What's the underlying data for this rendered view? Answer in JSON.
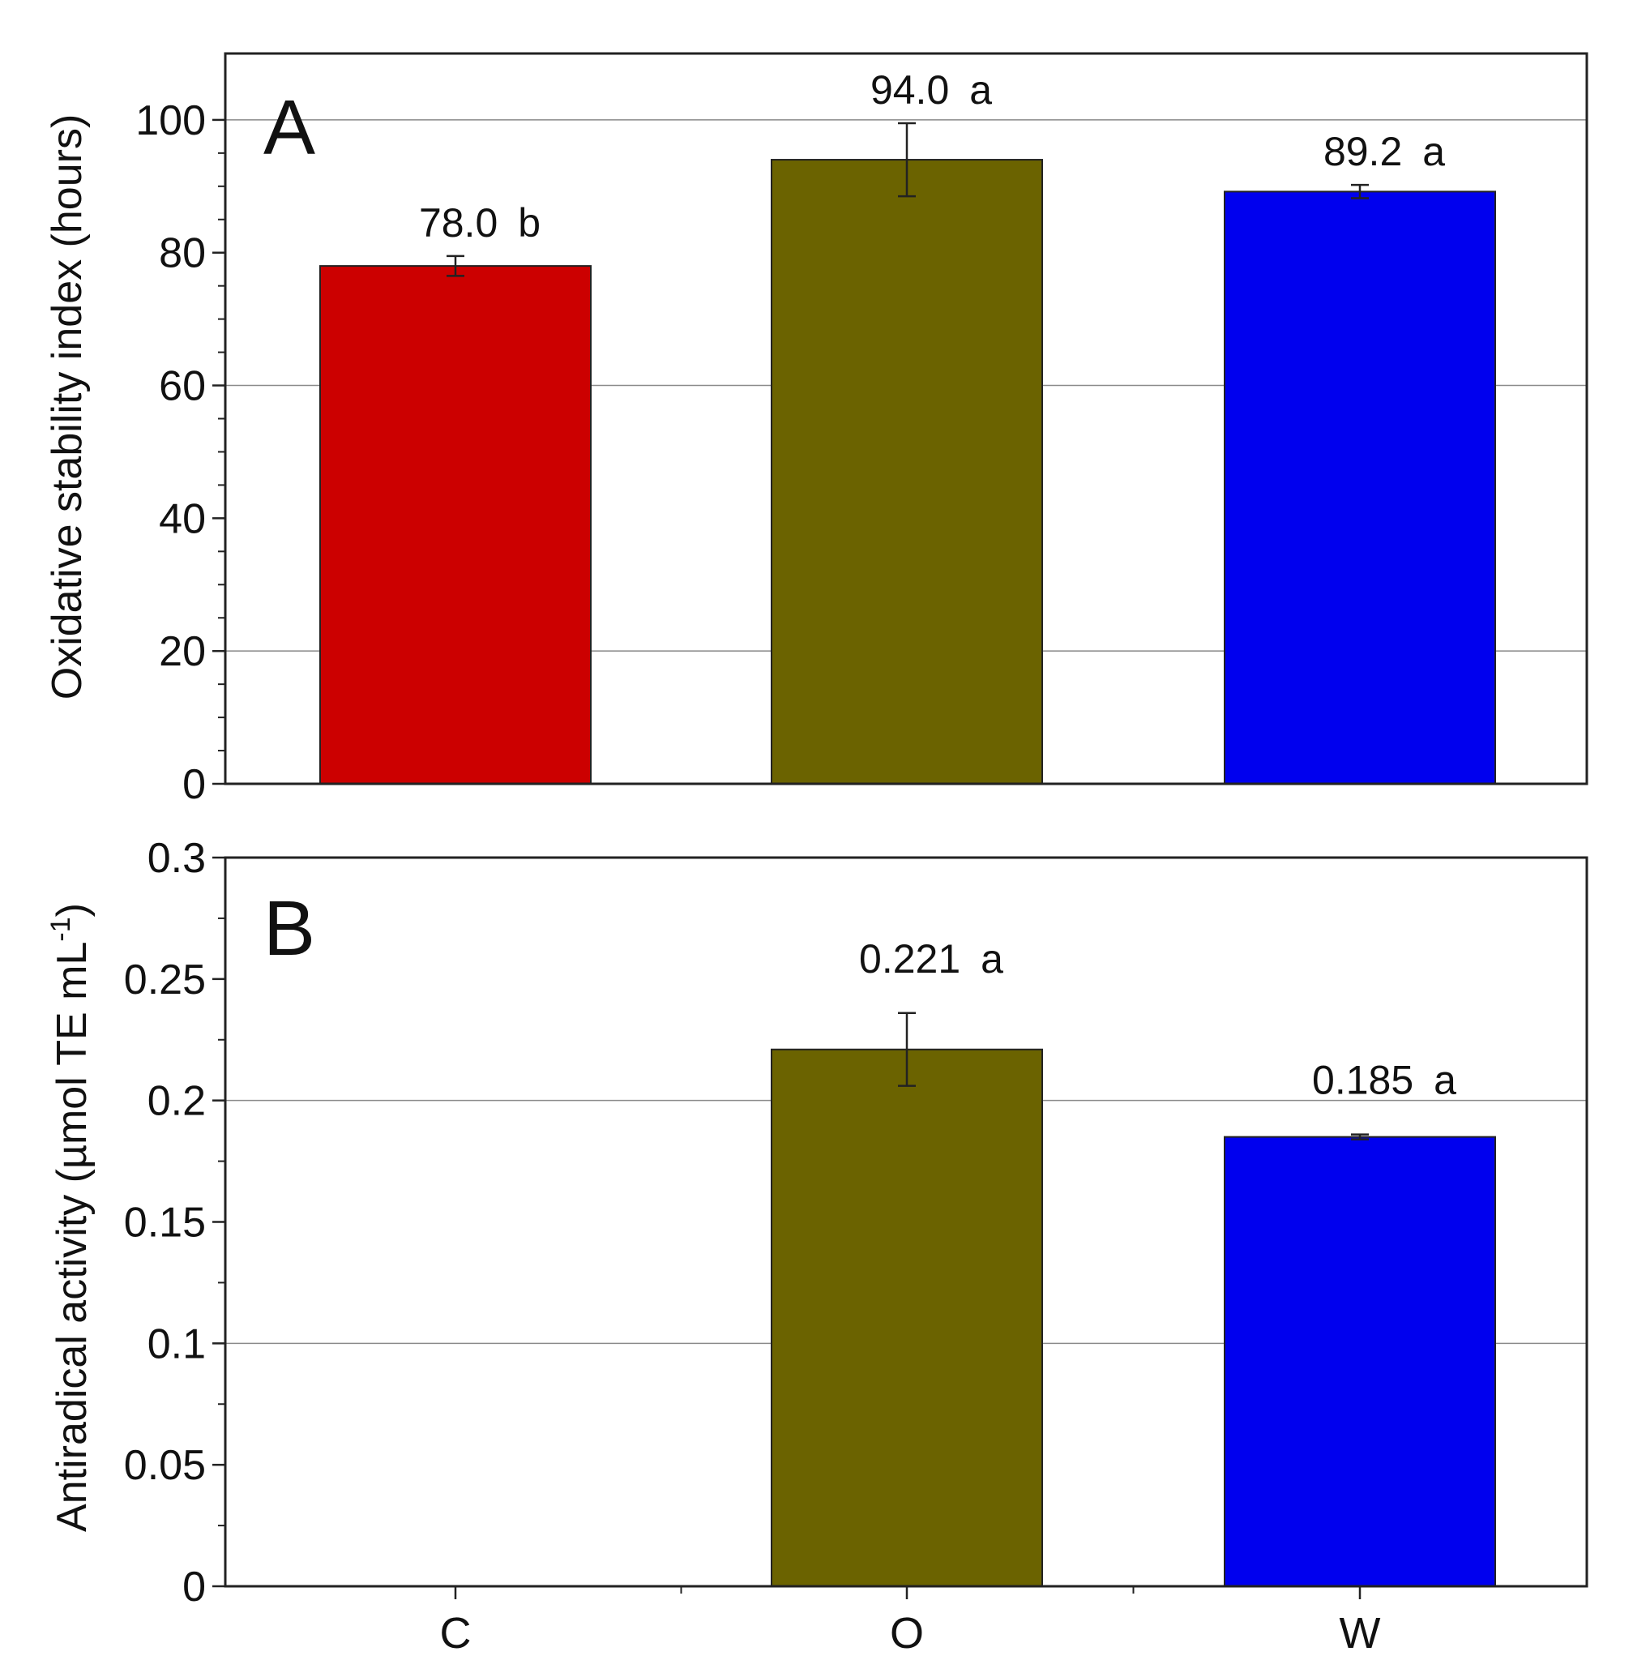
{
  "chart_data": [
    {
      "panel": "A",
      "type": "bar",
      "categories": [
        "C",
        "O",
        "W"
      ],
      "values": [
        78.0,
        94.0,
        89.2
      ],
      "errors": [
        1.5,
        5.5,
        1.0
      ],
      "value_labels": [
        "78.0",
        "94.0",
        "89.2"
      ],
      "group_letters": [
        "b",
        "a",
        "a"
      ],
      "colors": [
        "#cc0000",
        "#6b6300",
        "#0000ee"
      ],
      "ylabel": "Oxidative stability index (hours)",
      "xlabel": "",
      "ylim": [
        0,
        110
      ],
      "yticks": [
        0,
        20,
        40,
        60,
        80,
        100
      ],
      "ytick_labels": [
        "0",
        "20",
        "40",
        "60",
        "80",
        "100"
      ],
      "gridlines": [
        20,
        60,
        100
      ]
    },
    {
      "panel": "B",
      "type": "bar",
      "categories": [
        "C",
        "O",
        "W"
      ],
      "values": [
        0,
        0.221,
        0.185
      ],
      "errors": [
        0,
        0.015,
        0.001
      ],
      "value_labels": [
        "",
        "0.221",
        "0.185"
      ],
      "group_letters": [
        "",
        "a",
        "a"
      ],
      "colors": [
        "#cc0000",
        "#6b6300",
        "#0000ee"
      ],
      "ylabel": "Antiradical activity (µmol TE mL",
      "ylabel_sup": "-1",
      "ylabel_close": ")",
      "xlabel": "",
      "ylim": [
        0,
        0.3
      ],
      "yticks": [
        0,
        0.05,
        0.1,
        0.15,
        0.2,
        0.25,
        0.3
      ],
      "ytick_labels": [
        "0",
        "0.05",
        "0.1",
        "0.15",
        "0.2",
        "0.25",
        "0.3"
      ],
      "gridlines": [
        0.1,
        0.2
      ]
    }
  ],
  "x_tick_labels": [
    "C",
    "O",
    "W"
  ]
}
